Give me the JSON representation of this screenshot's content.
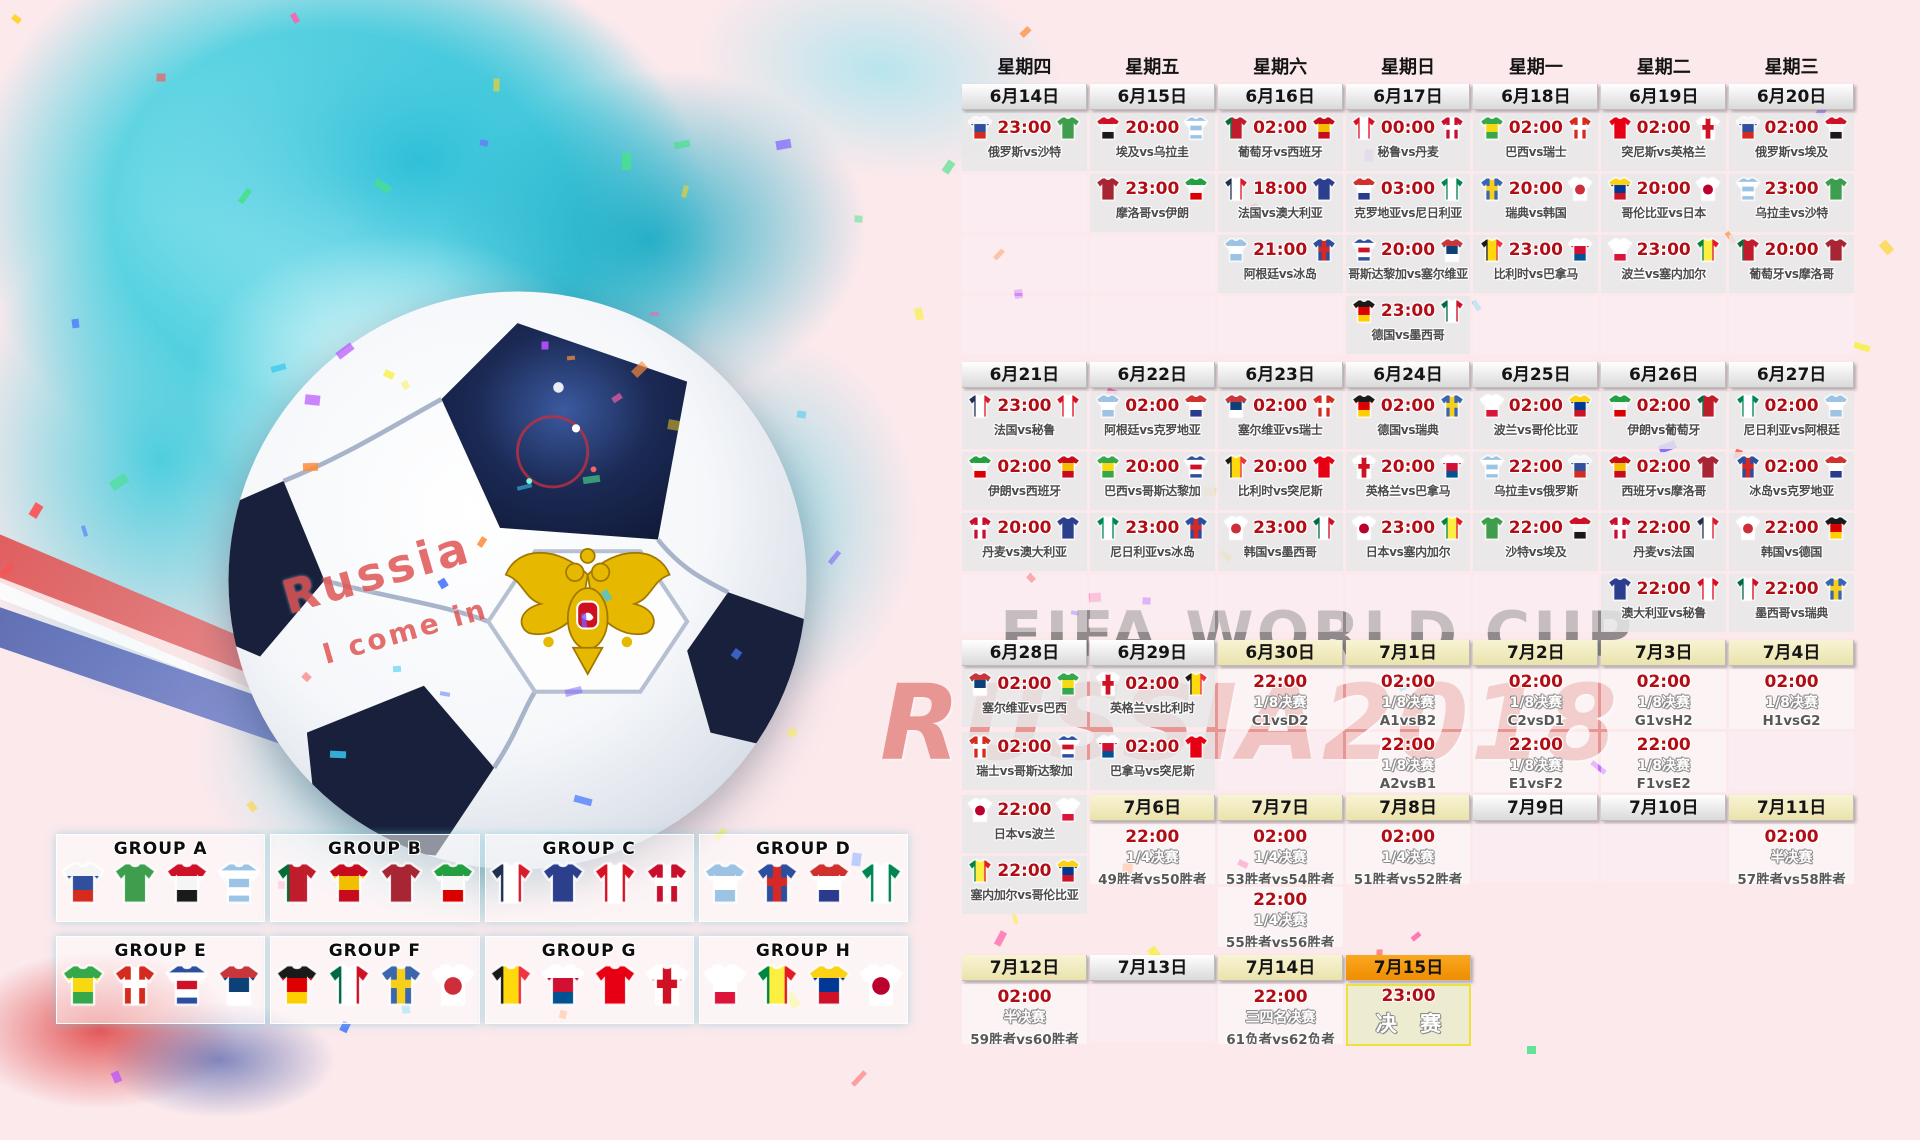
{
  "watermarks": {
    "fifa": "FIFA WORLD CUP",
    "russia": "RUSSIA2018",
    "ball_line1": "Russia",
    "ball_line2": "I come in"
  },
  "weekdays": [
    "星期四",
    "星期五",
    "星期六",
    "星期日",
    "星期一",
    "星期二",
    "星期三"
  ],
  "colors": {
    "time_red": "#b20d14",
    "date_orange": "#ef8c00",
    "date_gold": "#e9e2ab",
    "final_border": "#ece23c",
    "teal": "#3fc6d8",
    "pink_bg": "#fbe9ec"
  },
  "teams": {
    "俄罗斯": {
      "t": "h",
      "c": [
        "#f5f5f5",
        "#30509e",
        "#d52b1e"
      ]
    },
    "沙特": {
      "t": "solid",
      "c": [
        "#3f9e4d"
      ]
    },
    "埃及": {
      "t": "h",
      "c": [
        "#ce1126",
        "#f5f5f5",
        "#1a1a1a"
      ]
    },
    "乌拉圭": {
      "t": "h",
      "c": [
        "#9cc3e4",
        "#ffffff",
        "#9cc3e4",
        "#ffffff",
        "#9cc3e4"
      ]
    },
    "葡萄牙": {
      "t": "v",
      "c": [
        "#046a38",
        "#c01c2c",
        "#c01c2c"
      ]
    },
    "西班牙": {
      "t": "h",
      "c": [
        "#c60b1e",
        "#f1bf00",
        "#c60b1e"
      ]
    },
    "摩洛哥": {
      "t": "solid",
      "c": [
        "#a82534"
      ]
    },
    "伊朗": {
      "t": "h",
      "c": [
        "#239f40",
        "#f7f7f7",
        "#da0000"
      ]
    },
    "法国": {
      "t": "v",
      "c": [
        "#21304e",
        "#ffffff",
        "#d91c2b"
      ]
    },
    "澳大利亚": {
      "t": "solid",
      "c": [
        "#2b3f8c"
      ]
    },
    "秘鲁": {
      "t": "v",
      "c": [
        "#d91023",
        "#ffffff",
        "#d91023"
      ]
    },
    "丹麦": {
      "t": "cross",
      "c": [
        "#c8102e",
        "#ffffff"
      ]
    },
    "阿根廷": {
      "t": "h",
      "c": [
        "#9cc3e4",
        "#ffffff",
        "#9cc3e4"
      ]
    },
    "冰岛": {
      "t": "cross",
      "c": [
        "#2b4e9e",
        "#d72828"
      ]
    },
    "克罗地亚": {
      "t": "h",
      "c": [
        "#d0312d",
        "#ffffff",
        "#2b3a8f"
      ]
    },
    "尼日利亚": {
      "t": "v",
      "c": [
        "#008751",
        "#ffffff",
        "#008751"
      ]
    },
    "巴西": {
      "t": "h",
      "c": [
        "#36a84c",
        "#f6d911",
        "#36a84c"
      ]
    },
    "瑞士": {
      "t": "cross",
      "c": [
        "#d52b1e",
        "#ffffff"
      ]
    },
    "哥斯达黎加": {
      "t": "h",
      "c": [
        "#2b4e9e",
        "#ffffff",
        "#ce1126",
        "#ffffff",
        "#2b4e9e"
      ]
    },
    "塞尔维亚": {
      "t": "h",
      "c": [
        "#c6363c",
        "#0c4076",
        "#ffffff"
      ]
    },
    "德国": {
      "t": "h",
      "c": [
        "#1a1a1a",
        "#dd0000",
        "#ffce00"
      ]
    },
    "墨西哥": {
      "t": "v",
      "c": [
        "#006847",
        "#ffffff",
        "#ce1126"
      ]
    },
    "瑞典": {
      "t": "cross",
      "c": [
        "#3a66b0",
        "#f5cf1b"
      ]
    },
    "韩国": {
      "t": "dot",
      "c": [
        "#ffffff",
        "#cd2e3a"
      ]
    },
    "比利时": {
      "t": "v",
      "c": [
        "#1a1a1a",
        "#ffd90c",
        "#ef3340"
      ]
    },
    "巴拿马": {
      "t": "h",
      "c": [
        "#ffffff",
        "#d21034",
        "#005293"
      ]
    },
    "突尼斯": {
      "t": "solid",
      "c": [
        "#e70013"
      ]
    },
    "英格兰": {
      "t": "cross",
      "c": [
        "#ffffff",
        "#ce1124"
      ]
    },
    "波兰": {
      "t": "h",
      "c": [
        "#ffffff",
        "#ffffff",
        "#dc143c"
      ]
    },
    "塞内加尔": {
      "t": "v",
      "c": [
        "#00853f",
        "#fdef42",
        "#e31b23"
      ]
    },
    "哥伦比亚": {
      "t": "h",
      "c": [
        "#fcd116",
        "#003893",
        "#ce1126"
      ]
    },
    "日本": {
      "t": "dot",
      "c": [
        "#ffffff",
        "#bc002d"
      ]
    }
  },
  "blocks": [
    {
      "dates": [
        {
          "l": "6月14日",
          "s": "plain"
        },
        {
          "l": "6月15日",
          "s": "plain"
        },
        {
          "l": "6月16日",
          "s": "plain"
        },
        {
          "l": "6月17日",
          "s": "plain"
        },
        {
          "l": "6月18日",
          "s": "plain"
        },
        {
          "l": "6月19日",
          "s": "plain"
        },
        {
          "l": "6月20日",
          "s": "plain"
        }
      ],
      "rows": [
        [
          {
            "k": "m",
            "tm": "23:00",
            "h": "俄罗斯",
            "a": "沙特"
          },
          {
            "k": "m",
            "tm": "20:00",
            "h": "埃及",
            "a": "乌拉圭"
          },
          {
            "k": "m",
            "tm": "02:00",
            "h": "葡萄牙",
            "a": "西班牙"
          },
          {
            "k": "m",
            "tm": "00:00",
            "h": "秘鲁",
            "a": "丹麦"
          },
          {
            "k": "m",
            "tm": "02:00",
            "h": "巴西",
            "a": "瑞士"
          },
          {
            "k": "m",
            "tm": "02:00",
            "h": "突尼斯",
            "a": "英格兰"
          },
          {
            "k": "m",
            "tm": "02:00",
            "h": "俄罗斯",
            "a": "埃及"
          }
        ],
        [
          {
            "k": "e"
          },
          {
            "k": "m",
            "tm": "23:00",
            "h": "摩洛哥",
            "a": "伊朗"
          },
          {
            "k": "m",
            "tm": "18:00",
            "h": "法国",
            "a": "澳大利亚"
          },
          {
            "k": "m",
            "tm": "03:00",
            "h": "克罗地亚",
            "a": "尼日利亚"
          },
          {
            "k": "m",
            "tm": "20:00",
            "h": "瑞典",
            "a": "韩国"
          },
          {
            "k": "m",
            "tm": "20:00",
            "h": "哥伦比亚",
            "a": "日本"
          },
          {
            "k": "m",
            "tm": "23:00",
            "h": "乌拉圭",
            "a": "沙特"
          }
        ],
        [
          {
            "k": "e"
          },
          {
            "k": "e"
          },
          {
            "k": "m",
            "tm": "21:00",
            "h": "阿根廷",
            "a": "冰岛"
          },
          {
            "k": "m",
            "tm": "20:00",
            "h": "哥斯达黎加",
            "a": "塞尔维亚"
          },
          {
            "k": "m",
            "tm": "23:00",
            "h": "比利时",
            "a": "巴拿马"
          },
          {
            "k": "m",
            "tm": "23:00",
            "h": "波兰",
            "a": "塞内加尔"
          },
          {
            "k": "m",
            "tm": "20:00",
            "h": "葡萄牙",
            "a": "摩洛哥"
          }
        ],
        [
          {
            "k": "e"
          },
          {
            "k": "e"
          },
          {
            "k": "e"
          },
          {
            "k": "m",
            "tm": "23:00",
            "h": "德国",
            "a": "墨西哥"
          },
          {
            "k": "e"
          },
          {
            "k": "e"
          },
          {
            "k": "e"
          }
        ]
      ]
    },
    {
      "dates": [
        {
          "l": "6月21日",
          "s": "plain"
        },
        {
          "l": "6月22日",
          "s": "plain"
        },
        {
          "l": "6月23日",
          "s": "plain"
        },
        {
          "l": "6月24日",
          "s": "plain"
        },
        {
          "l": "6月25日",
          "s": "plain"
        },
        {
          "l": "6月26日",
          "s": "plain"
        },
        {
          "l": "6月27日",
          "s": "plain"
        }
      ],
      "rows": [
        [
          {
            "k": "m",
            "tm": "23:00",
            "h": "法国",
            "a": "秘鲁"
          },
          {
            "k": "m",
            "tm": "02:00",
            "h": "阿根廷",
            "a": "克罗地亚"
          },
          {
            "k": "m",
            "tm": "02:00",
            "h": "塞尔维亚",
            "a": "瑞士"
          },
          {
            "k": "m",
            "tm": "02:00",
            "h": "德国",
            "a": "瑞典"
          },
          {
            "k": "m",
            "tm": "02:00",
            "h": "波兰",
            "a": "哥伦比亚"
          },
          {
            "k": "m",
            "tm": "02:00",
            "h": "伊朗",
            "a": "葡萄牙"
          },
          {
            "k": "m",
            "tm": "02:00",
            "h": "尼日利亚",
            "a": "阿根廷"
          }
        ],
        [
          {
            "k": "m",
            "tm": "02:00",
            "h": "伊朗",
            "a": "西班牙"
          },
          {
            "k": "m",
            "tm": "20:00",
            "h": "巴西",
            "a": "哥斯达黎加"
          },
          {
            "k": "m",
            "tm": "20:00",
            "h": "比利时",
            "a": "突尼斯"
          },
          {
            "k": "m",
            "tm": "20:00",
            "h": "英格兰",
            "a": "巴拿马"
          },
          {
            "k": "m",
            "tm": "22:00",
            "h": "乌拉圭",
            "a": "俄罗斯"
          },
          {
            "k": "m",
            "tm": "02:00",
            "h": "西班牙",
            "a": "摩洛哥"
          },
          {
            "k": "m",
            "tm": "02:00",
            "h": "冰岛",
            "a": "克罗地亚"
          }
        ],
        [
          {
            "k": "m",
            "tm": "20:00",
            "h": "丹麦",
            "a": "澳大利亚"
          },
          {
            "k": "m",
            "tm": "23:00",
            "h": "尼日利亚",
            "a": "冰岛"
          },
          {
            "k": "m",
            "tm": "23:00",
            "h": "韩国",
            "a": "墨西哥"
          },
          {
            "k": "m",
            "tm": "23:00",
            "h": "日本",
            "a": "塞内加尔"
          },
          {
            "k": "m",
            "tm": "22:00",
            "h": "沙特",
            "a": "埃及"
          },
          {
            "k": "m",
            "tm": "22:00",
            "h": "丹麦",
            "a": "法国"
          },
          {
            "k": "m",
            "tm": "22:00",
            "h": "韩国",
            "a": "德国"
          }
        ],
        [
          {
            "k": "e"
          },
          {
            "k": "e"
          },
          {
            "k": "e"
          },
          {
            "k": "e"
          },
          {
            "k": "e"
          },
          {
            "k": "m",
            "tm": "22:00",
            "h": "澳大利亚",
            "a": "秘鲁"
          },
          {
            "k": "m",
            "tm": "22:00",
            "h": "墨西哥",
            "a": "瑞典"
          }
        ]
      ]
    },
    {
      "dates": [
        {
          "l": "6月28日",
          "s": "plain"
        },
        {
          "l": "6月29日",
          "s": "plain"
        },
        {
          "l": "6月30日",
          "s": "gold"
        },
        {
          "l": "7月1日",
          "s": "gold"
        },
        {
          "l": "7月2日",
          "s": "gold"
        },
        {
          "l": "7月3日",
          "s": "gold"
        },
        {
          "l": "7月4日",
          "s": "gold"
        }
      ],
      "rows": [
        [
          {
            "k": "m",
            "tm": "02:00",
            "h": "塞尔维亚",
            "a": "巴西"
          },
          {
            "k": "m",
            "tm": "02:00",
            "h": "英格兰",
            "a": "比利时"
          },
          {
            "k": "t",
            "tm": "22:00",
            "st": "1/8决赛",
            "d": "C1vsD2"
          },
          {
            "k": "t",
            "tm": "02:00",
            "st": "1/8决赛",
            "d": "A1vsB2"
          },
          {
            "k": "t",
            "tm": "02:00",
            "st": "1/8决赛",
            "d": "C2vsD1"
          },
          {
            "k": "t",
            "tm": "02:00",
            "st": "1/8决赛",
            "d": "G1vsH2"
          },
          {
            "k": "t",
            "tm": "02:00",
            "st": "1/8决赛",
            "d": "H1vsG2"
          }
        ],
        [
          {
            "k": "m",
            "tm": "02:00",
            "h": "瑞士",
            "a": "哥斯达黎加"
          },
          {
            "k": "m",
            "tm": "02:00",
            "h": "巴拿马",
            "a": "突尼斯"
          },
          {
            "k": "e"
          },
          {
            "k": "t",
            "tm": "22:00",
            "st": "1/8决赛",
            "d": "A2vsB1"
          },
          {
            "k": "t",
            "tm": "22:00",
            "st": "1/8决赛",
            "d": "E1vsF2"
          },
          {
            "k": "t",
            "tm": "22:00",
            "st": "1/8决赛",
            "d": "F1vsE2"
          },
          {
            "k": "e"
          }
        ]
      ]
    }
  ],
  "section4": {
    "col1": [
      {
        "k": "m",
        "tm": "22:00",
        "h": "日本",
        "a": "波兰"
      },
      {
        "k": "m",
        "tm": "22:00",
        "h": "塞内加尔",
        "a": "哥伦比亚"
      }
    ],
    "dates": [
      {
        "l": "7月6日",
        "s": "gold"
      },
      {
        "l": "7月7日",
        "s": "gold"
      },
      {
        "l": "7月8日",
        "s": "gold"
      },
      {
        "l": "7月9日",
        "s": "plain"
      },
      {
        "l": "7月10日",
        "s": "plain"
      },
      {
        "l": "7月11日",
        "s": "gold"
      }
    ],
    "cols": [
      [
        {
          "k": "t",
          "tm": "22:00",
          "st": "1/4决赛",
          "d": "49胜者vs50胜者"
        }
      ],
      [
        {
          "k": "t",
          "tm": "02:00",
          "st": "1/4决赛",
          "d": "53胜者vs54胜者"
        },
        {
          "k": "t",
          "tm": "22:00",
          "st": "1/4决赛",
          "d": "55胜者vs56胜者"
        }
      ],
      [
        {
          "k": "t",
          "tm": "02:00",
          "st": "1/4决赛",
          "d": "51胜者vs52胜者"
        }
      ],
      [
        {
          "k": "e"
        }
      ],
      [
        {
          "k": "e"
        }
      ],
      [
        {
          "k": "t",
          "tm": "02:00",
          "st": "半决赛",
          "d": "57胜者vs58胜者"
        }
      ]
    ]
  },
  "section5": {
    "dates": [
      {
        "l": "7月12日",
        "s": "gold"
      },
      {
        "l": "7月13日",
        "s": "plain"
      },
      {
        "l": "7月14日",
        "s": "gold"
      },
      {
        "l": "7月15日",
        "s": "orange"
      }
    ],
    "row": [
      {
        "k": "t",
        "tm": "02:00",
        "st": "半决赛",
        "d": "59胜者vs60胜者"
      },
      {
        "k": "e"
      },
      {
        "k": "t",
        "tm": "22:00",
        "st": "三四名决赛",
        "d": "61负者vs62负者"
      },
      {
        "k": "f",
        "tm": "23:00",
        "st": "决 赛"
      }
    ]
  },
  "groups": [
    {
      "label": "GROUP A",
      "teams": [
        "俄罗斯",
        "沙特",
        "埃及",
        "乌拉圭"
      ]
    },
    {
      "label": "GROUP B",
      "teams": [
        "葡萄牙",
        "西班牙",
        "摩洛哥",
        "伊朗"
      ]
    },
    {
      "label": "GROUP C",
      "teams": [
        "法国",
        "澳大利亚",
        "秘鲁",
        "丹麦"
      ]
    },
    {
      "label": "GROUP D",
      "teams": [
        "阿根廷",
        "冰岛",
        "克罗地亚",
        "尼日利亚"
      ]
    },
    {
      "label": "GROUP E",
      "teams": [
        "巴西",
        "瑞士",
        "哥斯达黎加",
        "塞尔维亚"
      ]
    },
    {
      "label": "GROUP F",
      "teams": [
        "德国",
        "墨西哥",
        "瑞典",
        "韩国"
      ]
    },
    {
      "label": "GROUP G",
      "teams": [
        "比利时",
        "巴拿马",
        "突尼斯",
        "英格兰"
      ]
    },
    {
      "label": "GROUP H",
      "teams": [
        "波兰",
        "塞内加尔",
        "哥伦比亚",
        "日本"
      ]
    }
  ]
}
